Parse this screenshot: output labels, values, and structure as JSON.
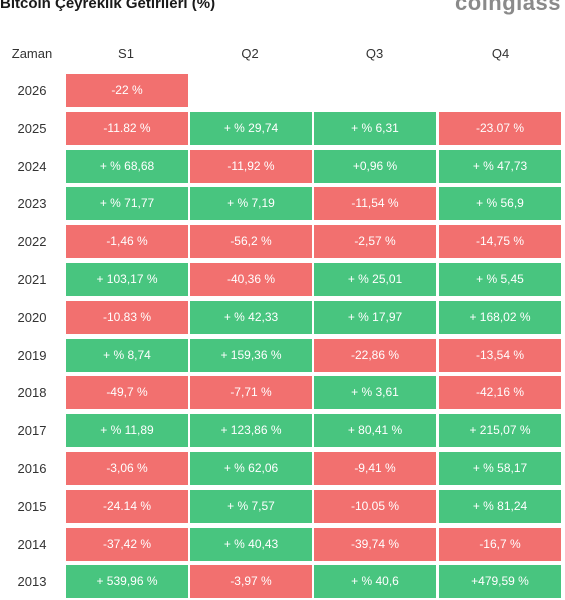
{
  "title": "Bitcoin Çeyreklik Getirileri (%)",
  "logo": "coinglass",
  "colors": {
    "positive": "#48c57f",
    "negative": "#f2706f",
    "header_text": "#333333",
    "cell_text": "#ffffff"
  },
  "chart_data": {
    "type": "table",
    "title": "Bitcoin Çeyreklik Getirileri (%)",
    "row_header_label": "Zaman",
    "columns": [
      "S1",
      "Q2",
      "Q3",
      "Q4"
    ],
    "rows": [
      {
        "year": "2026",
        "cells": [
          {
            "text": "-22 %",
            "value": -22
          },
          null,
          null,
          null
        ]
      },
      {
        "year": "2025",
        "cells": [
          {
            "text": "-11.82 %",
            "value": -11.82
          },
          {
            "text": "+ % 29,74",
            "value": 29.74
          },
          {
            "text": "+ % 6,31",
            "value": 6.31
          },
          {
            "text": "-23.07 %",
            "value": -23.07
          }
        ]
      },
      {
        "year": "2024",
        "cells": [
          {
            "text": "+ % 68,68",
            "value": 68.68
          },
          {
            "text": "-11,92 %",
            "value": -11.92
          },
          {
            "text": "+0,96 %",
            "value": 0.96
          },
          {
            "text": "+ % 47,73",
            "value": 47.73
          }
        ]
      },
      {
        "year": "2023",
        "cells": [
          {
            "text": "+ % 71,77",
            "value": 71.77
          },
          {
            "text": "+ % 7,19",
            "value": 7.19
          },
          {
            "text": "-11,54 %",
            "value": -11.54
          },
          {
            "text": "+ % 56,9",
            "value": 56.9
          }
        ]
      },
      {
        "year": "2022",
        "cells": [
          {
            "text": "-1,46 %",
            "value": -1.46
          },
          {
            "text": "-56,2 %",
            "value": -56.2
          },
          {
            "text": "-2,57 %",
            "value": -2.57
          },
          {
            "text": "-14,75 %",
            "value": -14.75
          }
        ]
      },
      {
        "year": "2021",
        "cells": [
          {
            "text": "+ 103,17 %",
            "value": 103.17
          },
          {
            "text": "-40,36 %",
            "value": -40.36
          },
          {
            "text": "+ % 25,01",
            "value": 25.01
          },
          {
            "text": "+ % 5,45",
            "value": 5.45
          }
        ]
      },
      {
        "year": "2020",
        "cells": [
          {
            "text": "-10.83 %",
            "value": -10.83
          },
          {
            "text": "+ % 42,33",
            "value": 42.33
          },
          {
            "text": "+ % 17,97",
            "value": 17.97
          },
          {
            "text": "+ 168,02 %",
            "value": 168.02
          }
        ]
      },
      {
        "year": "2019",
        "cells": [
          {
            "text": "+ % 8,74",
            "value": 8.74
          },
          {
            "text": "+ 159,36 %",
            "value": 159.36
          },
          {
            "text": "-22,86 %",
            "value": -22.86
          },
          {
            "text": "-13,54 %",
            "value": -13.54
          }
        ]
      },
      {
        "year": "2018",
        "cells": [
          {
            "text": "-49,7 %",
            "value": -49.7
          },
          {
            "text": "-7,71 %",
            "value": -7.71
          },
          {
            "text": "+ % 3,61",
            "value": 3.61
          },
          {
            "text": "-42,16 %",
            "value": -42.16
          }
        ]
      },
      {
        "year": "2017",
        "cells": [
          {
            "text": "+ % 11,89",
            "value": 11.89
          },
          {
            "text": "+ 123,86 %",
            "value": 123.86
          },
          {
            "text": "+ 80,41 %",
            "value": 80.41
          },
          {
            "text": "+ 215,07 %",
            "value": 215.07
          }
        ]
      },
      {
        "year": "2016",
        "cells": [
          {
            "text": "-3,06 %",
            "value": -3.06
          },
          {
            "text": "+ % 62,06",
            "value": 62.06
          },
          {
            "text": "-9,41 %",
            "value": -9.41
          },
          {
            "text": "+ % 58,17",
            "value": 58.17
          }
        ]
      },
      {
        "year": "2015",
        "cells": [
          {
            "text": "-24.14 %",
            "value": -24.14
          },
          {
            "text": "+ % 7,57",
            "value": 7.57
          },
          {
            "text": "-10.05 %",
            "value": -10.05
          },
          {
            "text": "+ % 81,24",
            "value": 81.24
          }
        ]
      },
      {
        "year": "2014",
        "cells": [
          {
            "text": "-37,42 %",
            "value": -37.42
          },
          {
            "text": "+ % 40,43",
            "value": 40.43
          },
          {
            "text": "-39,74 %",
            "value": -39.74
          },
          {
            "text": "-16,7 %",
            "value": -16.7
          }
        ]
      },
      {
        "year": "2013",
        "cells": [
          {
            "text": "+ 539,96 %",
            "value": 539.96
          },
          {
            "text": "-3,97 %",
            "value": -3.97
          },
          {
            "text": "+ % 40,6",
            "value": 40.6
          },
          {
            "text": "+479,59 %",
            "value": 479.59
          }
        ]
      }
    ]
  }
}
